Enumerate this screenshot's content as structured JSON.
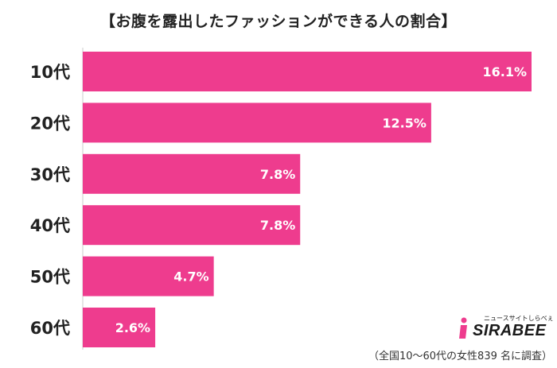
{
  "chart_data": {
    "type": "bar",
    "orientation": "horizontal",
    "title": "【お腹を露出したファッションができる人の割合】",
    "categories": [
      "10代",
      "20代",
      "30代",
      "40代",
      "50代",
      "60代"
    ],
    "values": [
      16.1,
      12.5,
      7.8,
      7.8,
      4.7,
      2.6
    ],
    "value_labels": [
      "16.1%",
      "12.5%",
      "7.8%",
      "7.8%",
      "4.7%",
      "2.6%"
    ],
    "unit": "%",
    "xlim": [
      0,
      16.1
    ],
    "grid": false,
    "bar_color": "#ee3c8e",
    "note": "（全国10～60代の女性839 名に調査）"
  },
  "logo": {
    "tagline": "ニュースサイトしらべぇ",
    "brand": "SIRABEE",
    "accent_color": "#ee3c8e"
  }
}
